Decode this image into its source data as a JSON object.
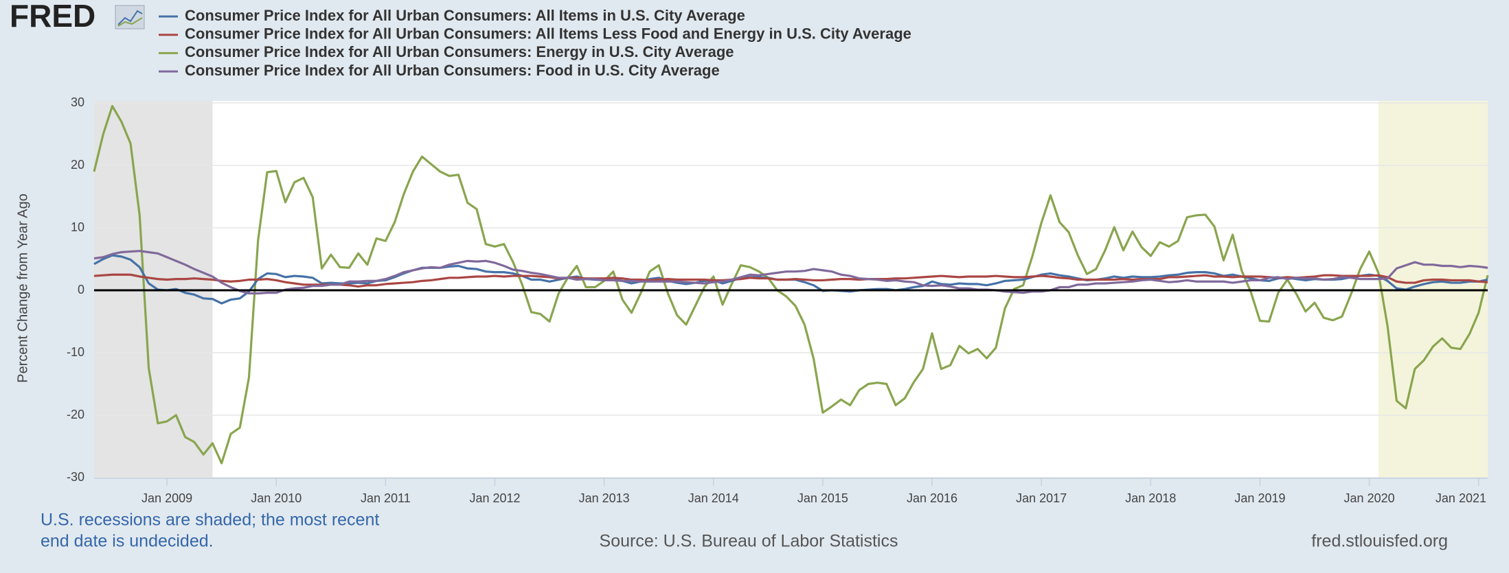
{
  "logo": "FRED",
  "chart_data": {
    "type": "line",
    "y_label": "Percent Change from Year Ago",
    "note": [
      "U.S. recessions are shaded; the most recent",
      "end date is undecided."
    ],
    "source": "Source: U.S. Bureau of Labor Statistics",
    "site": "fred.stlouisfed.org",
    "xlim": [
      "2008-05",
      "2021-02"
    ],
    "ylim": [
      -30,
      30
    ],
    "yticks": [
      -30,
      -20,
      -10,
      0,
      10,
      20,
      30
    ],
    "grid": true,
    "xticks": [
      {
        "value": "2009-01",
        "label": "Jan 2009"
      },
      {
        "value": "2010-01",
        "label": "Jan 2010"
      },
      {
        "value": "2011-01",
        "label": "Jan 2011"
      },
      {
        "value": "2012-01",
        "label": "Jan 2012"
      },
      {
        "value": "2013-01",
        "label": "Jan 2013"
      },
      {
        "value": "2014-01",
        "label": "Jan 2014"
      },
      {
        "value": "2015-01",
        "label": "Jan 2015"
      },
      {
        "value": "2016-01",
        "label": "Jan 2016"
      },
      {
        "value": "2017-01",
        "label": "Jan 2017"
      },
      {
        "value": "2018-01",
        "label": "Jan 2018"
      },
      {
        "value": "2019-01",
        "label": "Jan 2019"
      },
      {
        "value": "2020-01",
        "label": "Jan 2020"
      },
      {
        "value": "2021-01",
        "label": "Jan 2021"
      }
    ],
    "recessions": [
      {
        "start": "2007-12",
        "end": "2009-06",
        "color": "#e4e4e4"
      },
      {
        "start": "2020-02",
        "end": null,
        "color": "#f4f4dc"
      }
    ],
    "x": [
      "2008-05",
      "2008-06",
      "2008-07",
      "2008-08",
      "2008-09",
      "2008-10",
      "2008-11",
      "2008-12",
      "2009-01",
      "2009-02",
      "2009-03",
      "2009-04",
      "2009-05",
      "2009-06",
      "2009-07",
      "2009-08",
      "2009-09",
      "2009-10",
      "2009-11",
      "2009-12",
      "2010-01",
      "2010-02",
      "2010-03",
      "2010-04",
      "2010-05",
      "2010-06",
      "2010-07",
      "2010-08",
      "2010-09",
      "2010-10",
      "2010-11",
      "2010-12",
      "2011-01",
      "2011-02",
      "2011-03",
      "2011-04",
      "2011-05",
      "2011-06",
      "2011-07",
      "2011-08",
      "2011-09",
      "2011-10",
      "2011-11",
      "2011-12",
      "2012-01",
      "2012-02",
      "2012-03",
      "2012-04",
      "2012-05",
      "2012-06",
      "2012-07",
      "2012-08",
      "2012-09",
      "2012-10",
      "2012-11",
      "2012-12",
      "2013-01",
      "2013-02",
      "2013-03",
      "2013-04",
      "2013-05",
      "2013-06",
      "2013-07",
      "2013-08",
      "2013-09",
      "2013-10",
      "2013-11",
      "2013-12",
      "2014-01",
      "2014-02",
      "2014-03",
      "2014-04",
      "2014-05",
      "2014-06",
      "2014-07",
      "2014-08",
      "2014-09",
      "2014-10",
      "2014-11",
      "2014-12",
      "2015-01",
      "2015-02",
      "2015-03",
      "2015-04",
      "2015-05",
      "2015-06",
      "2015-07",
      "2015-08",
      "2015-09",
      "2015-10",
      "2015-11",
      "2015-12",
      "2016-01",
      "2016-02",
      "2016-03",
      "2016-04",
      "2016-05",
      "2016-06",
      "2016-07",
      "2016-08",
      "2016-09",
      "2016-10",
      "2016-11",
      "2016-12",
      "2017-01",
      "2017-02",
      "2017-03",
      "2017-04",
      "2017-05",
      "2017-06",
      "2017-07",
      "2017-08",
      "2017-09",
      "2017-10",
      "2017-11",
      "2017-12",
      "2018-01",
      "2018-02",
      "2018-03",
      "2018-04",
      "2018-05",
      "2018-06",
      "2018-07",
      "2018-08",
      "2018-09",
      "2018-10",
      "2018-11",
      "2018-12",
      "2019-01",
      "2019-02",
      "2019-03",
      "2019-04",
      "2019-05",
      "2019-06",
      "2019-07",
      "2019-08",
      "2019-09",
      "2019-10",
      "2019-11",
      "2019-12",
      "2020-01",
      "2020-02",
      "2020-03",
      "2020-04",
      "2020-05",
      "2020-06",
      "2020-07",
      "2020-08",
      "2020-09",
      "2020-10",
      "2020-11",
      "2020-12",
      "2021-01",
      "2021-02"
    ],
    "series": [
      {
        "name": "Consumer Price Index for All Urban Consumers: All Items in U.S. City Average",
        "color": "#4572a7",
        "values": [
          4.2,
          5.0,
          5.6,
          5.4,
          4.9,
          3.7,
          1.1,
          0.1,
          0.0,
          0.2,
          -0.4,
          -0.7,
          -1.3,
          -1.4,
          -2.1,
          -1.5,
          -1.3,
          -0.2,
          1.8,
          2.7,
          2.6,
          2.1,
          2.3,
          2.2,
          2.0,
          1.1,
          1.2,
          1.1,
          1.1,
          1.2,
          1.1,
          1.5,
          1.6,
          2.1,
          2.7,
          3.2,
          3.6,
          3.6,
          3.6,
          3.8,
          3.9,
          3.5,
          3.4,
          3.0,
          2.9,
          2.9,
          2.7,
          2.3,
          1.7,
          1.7,
          1.4,
          1.7,
          2.0,
          2.2,
          1.8,
          1.7,
          1.6,
          2.0,
          1.5,
          1.1,
          1.4,
          1.8,
          2.0,
          1.5,
          1.2,
          1.0,
          1.2,
          1.5,
          1.6,
          1.1,
          1.5,
          2.0,
          2.1,
          2.1,
          2.0,
          1.7,
          1.7,
          1.7,
          1.3,
          0.8,
          -0.1,
          0.0,
          -0.1,
          -0.2,
          0.0,
          0.1,
          0.2,
          0.2,
          0.0,
          0.2,
          0.5,
          0.7,
          1.4,
          1.0,
          0.9,
          1.1,
          1.0,
          1.0,
          0.8,
          1.1,
          1.5,
          1.6,
          1.7,
          2.1,
          2.5,
          2.7,
          2.4,
          2.2,
          1.9,
          1.6,
          1.7,
          1.9,
          2.2,
          2.0,
          2.2,
          2.1,
          2.1,
          2.2,
          2.4,
          2.5,
          2.8,
          2.9,
          2.9,
          2.7,
          2.3,
          2.5,
          2.2,
          1.9,
          1.6,
          1.5,
          1.9,
          2.0,
          1.8,
          1.6,
          1.8,
          1.7,
          1.7,
          1.8,
          2.1,
          2.3,
          2.5,
          2.3,
          1.5,
          0.3,
          0.1,
          0.6,
          1.0,
          1.3,
          1.4,
          1.2,
          1.2,
          1.4,
          1.4,
          1.7
        ]
      },
      {
        "name": "Consumer Price Index for All Urban Consumers: All Items Less Food and Energy in U.S. City Average",
        "color": "#aa4643",
        "values": [
          2.3,
          2.4,
          2.5,
          2.5,
          2.5,
          2.2,
          2.0,
          1.8,
          1.7,
          1.8,
          1.8,
          1.9,
          1.8,
          1.7,
          1.5,
          1.4,
          1.5,
          1.7,
          1.7,
          1.8,
          1.6,
          1.3,
          1.1,
          0.9,
          0.9,
          0.9,
          0.9,
          0.9,
          0.8,
          0.6,
          0.8,
          0.8,
          1.0,
          1.1,
          1.2,
          1.3,
          1.5,
          1.6,
          1.8,
          2.0,
          2.0,
          2.1,
          2.2,
          2.2,
          2.3,
          2.2,
          2.3,
          2.3,
          2.3,
          2.2,
          2.1,
          1.9,
          2.0,
          2.0,
          1.9,
          1.9,
          1.9,
          2.0,
          1.9,
          1.7,
          1.7,
          1.6,
          1.7,
          1.8,
          1.7,
          1.7,
          1.7,
          1.7,
          1.6,
          1.6,
          1.7,
          1.8,
          2.0,
          1.9,
          1.9,
          1.7,
          1.7,
          1.8,
          1.7,
          1.6,
          1.6,
          1.7,
          1.8,
          1.8,
          1.7,
          1.8,
          1.8,
          1.8,
          1.9,
          1.9,
          2.0,
          2.1,
          2.2,
          2.3,
          2.2,
          2.1,
          2.2,
          2.2,
          2.2,
          2.3,
          2.2,
          2.1,
          2.1,
          2.2,
          2.3,
          2.2,
          2.0,
          1.9,
          1.7,
          1.7,
          1.7,
          1.7,
          1.7,
          1.8,
          1.7,
          1.8,
          1.8,
          1.8,
          2.1,
          2.1,
          2.2,
          2.3,
          2.4,
          2.2,
          2.2,
          2.1,
          2.2,
          2.2,
          2.2,
          2.1,
          2.0,
          2.1,
          2.0,
          2.1,
          2.2,
          2.4,
          2.4,
          2.3,
          2.3,
          2.3,
          2.3,
          2.4,
          2.1,
          1.4,
          1.2,
          1.2,
          1.6,
          1.7,
          1.7,
          1.6,
          1.6,
          1.6,
          1.4,
          1.3
        ]
      },
      {
        "name": "Consumer Price Index for All Urban Consumers: Energy in U.S. City Average",
        "color": "#89a54e",
        "values": [
          19,
          25,
          29.5,
          27,
          23.5,
          12,
          -12.5,
          -21.3,
          -21,
          -20,
          -23.5,
          -24.3,
          -26.3,
          -24.5,
          -27.7,
          -23,
          -22,
          -14,
          8,
          18.9,
          19.1,
          14.1,
          17.3,
          18,
          14.9,
          3.5,
          5.7,
          3.7,
          3.6,
          5.9,
          4.1,
          8.3,
          7.9,
          10.9,
          15.4,
          19.0,
          21.4,
          20.2,
          19.0,
          18.3,
          18.5,
          14.0,
          13.0,
          7.4,
          7.0,
          7.4,
          4.5,
          0.9,
          -3.5,
          -3.8,
          -5.0,
          -0.5,
          2.0,
          3.9,
          0.5,
          0.5,
          1.5,
          3.0,
          -1.5,
          -3.6,
          -0.5,
          3.0,
          4.0,
          -0.5,
          -4.0,
          -5.5,
          -2.5,
          0.5,
          2.2,
          -2.3,
          1.0,
          4.0,
          3.7,
          3.0,
          2.0,
          0.0,
          -1.0,
          -2.5,
          -5.5,
          -11.0,
          -19.6,
          -18.6,
          -17.5,
          -18.4,
          -16.0,
          -15.0,
          -14.8,
          -15.0,
          -18.4,
          -17.3,
          -14.7,
          -12.6,
          -6.9,
          -12.6,
          -12.0,
          -8.9,
          -10.1,
          -9.4,
          -10.9,
          -9.2,
          -2.9,
          0.2,
          0.8,
          5.4,
          10.8,
          15.2,
          10.9,
          9.3,
          5.6,
          2.6,
          3.4,
          6.4,
          10.1,
          6.4,
          9.4,
          6.9,
          5.5,
          7.7,
          7.0,
          7.9,
          11.7,
          12.0,
          12.1,
          10.2,
          4.8,
          8.9,
          3.1,
          -0.3,
          -4.9,
          -5.0,
          -0.4,
          1.7,
          -0.6,
          -3.4,
          -2.0,
          -4.4,
          -4.8,
          -4.2,
          -0.6,
          3.4,
          6.2,
          2.8,
          -5.7,
          -17.7,
          -18.9,
          -12.6,
          -11.2,
          -9.0,
          -7.7,
          -9.2,
          -9.4,
          -7.0,
          -3.6,
          2.4
        ]
      },
      {
        "name": "Consumer Price Index for All Urban Consumers: Food in U.S. City Average",
        "color": "#80699b",
        "values": [
          5.1,
          5.3,
          5.8,
          6.1,
          6.2,
          6.3,
          6.1,
          5.9,
          5.3,
          4.7,
          4.1,
          3.4,
          2.8,
          2.2,
          1.2,
          0.5,
          -0.1,
          -0.5,
          -0.5,
          -0.4,
          -0.4,
          0.1,
          0.3,
          0.4,
          0.7,
          0.7,
          0.9,
          0.9,
          1.4,
          1.4,
          1.5,
          1.5,
          1.8,
          2.3,
          2.9,
          3.2,
          3.5,
          3.7,
          3.6,
          4.1,
          4.4,
          4.7,
          4.6,
          4.7,
          4.4,
          3.9,
          3.3,
          3.1,
          2.8,
          2.6,
          2.3,
          2.0,
          2.0,
          1.7,
          1.8,
          1.8,
          1.6,
          1.6,
          1.5,
          1.5,
          1.4,
          1.4,
          1.4,
          1.4,
          1.4,
          1.3,
          1.2,
          1.1,
          1.3,
          1.4,
          1.7,
          2.1,
          2.5,
          2.4,
          2.6,
          2.8,
          3.0,
          3.0,
          3.1,
          3.4,
          3.2,
          3.0,
          2.5,
          2.3,
          1.9,
          1.8,
          1.7,
          1.5,
          1.6,
          1.4,
          1.3,
          0.8,
          0.7,
          0.8,
          0.6,
          0.3,
          0.3,
          0.1,
          0.1,
          0.0,
          -0.2,
          -0.3,
          -0.4,
          -0.2,
          -0.2,
          0.0,
          0.5,
          0.5,
          0.9,
          0.9,
          1.1,
          1.1,
          1.2,
          1.3,
          1.4,
          1.6,
          1.7,
          1.5,
          1.3,
          1.4,
          1.6,
          1.4,
          1.4,
          1.4,
          1.4,
          1.2,
          1.4,
          1.6,
          1.6,
          2.0,
          2.1,
          1.8,
          2.0,
          1.9,
          1.9,
          1.7,
          1.8,
          2.1,
          2.0,
          1.8,
          1.8,
          1.8,
          1.9,
          3.5,
          4.0,
          4.5,
          4.1,
          4.1,
          3.9,
          3.9,
          3.7,
          3.9,
          3.8,
          3.6
        ]
      }
    ]
  }
}
